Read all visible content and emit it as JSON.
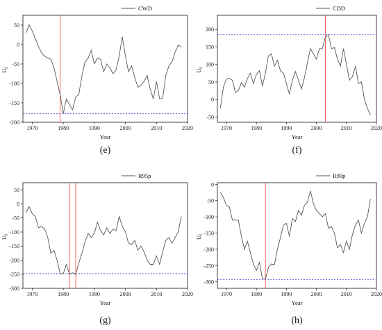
{
  "colors": {
    "line": "#555555",
    "vline": "#ff3b3b",
    "hline": "#3c4fd8",
    "axis": "#111111"
  },
  "chart_data": [
    {
      "type": "line",
      "panel_label": "(e)",
      "ylabel": "U",
      "ylabel_sub": "f",
      "xlabel": "Year",
      "xlim": [
        1967,
        2020
      ],
      "ylim": [
        -200,
        75
      ],
      "xticks": [
        1970,
        1980,
        1990,
        2000,
        2010,
        2020
      ],
      "yticks": [
        50,
        0,
        -50,
        -100,
        -150,
        -200
      ],
      "series": [
        {
          "name": "CWD",
          "x": [
            1968,
            1969,
            1970,
            1971,
            1972,
            1973,
            1974,
            1975,
            1976,
            1977,
            1978,
            1979,
            1980,
            1981,
            1982,
            1983,
            1984,
            1985,
            1986,
            1987,
            1988,
            1989,
            1990,
            1991,
            1992,
            1993,
            1994,
            1995,
            1996,
            1997,
            1998,
            1999,
            2000,
            2001,
            2002,
            2003,
            2004,
            2005,
            2006,
            2007,
            2008,
            2009,
            2010,
            2011,
            2012,
            2013,
            2014,
            2015,
            2016,
            2017,
            2018
          ],
          "y": [
            30,
            50,
            35,
            15,
            -5,
            -22,
            -30,
            -35,
            -38,
            -60,
            -95,
            -130,
            -178,
            -140,
            -155,
            -168,
            -135,
            -128,
            -80,
            -45,
            -35,
            -15,
            -50,
            -35,
            -38,
            -70,
            -50,
            -60,
            -75,
            -65,
            -30,
            20,
            -30,
            -70,
            -55,
            -85,
            -110,
            -105,
            -95,
            -80,
            -115,
            -140,
            -95,
            -140,
            -138,
            -80,
            -55,
            -45,
            -20,
            -2,
            -5
          ]
        }
      ],
      "vlines": [
        1979
      ],
      "hlines": [
        -178
      ]
    },
    {
      "type": "line",
      "panel_label": "(f)",
      "ylabel": "U",
      "ylabel_sub": "f",
      "xlabel": "Year",
      "xlim": [
        1967,
        2020
      ],
      "ylim": [
        -65,
        240
      ],
      "xticks": [
        1970,
        1980,
        1990,
        2000,
        2010,
        2020
      ],
      "yticks": [
        -50,
        0,
        50,
        100,
        150,
        200
      ],
      "series": [
        {
          "name": "CDD",
          "x": [
            1968,
            1969,
            1970,
            1971,
            1972,
            1973,
            1974,
            1975,
            1976,
            1977,
            1978,
            1979,
            1980,
            1981,
            1982,
            1983,
            1984,
            1985,
            1986,
            1987,
            1988,
            1989,
            1990,
            1991,
            1992,
            1993,
            1994,
            1995,
            1996,
            1997,
            1998,
            1999,
            2000,
            2001,
            2002,
            2003,
            2004,
            2005,
            2006,
            2007,
            2008,
            2009,
            2010,
            2011,
            2012,
            2013,
            2014,
            2015,
            2016,
            2017,
            2018
          ],
          "y": [
            -25,
            35,
            58,
            60,
            55,
            20,
            25,
            48,
            35,
            60,
            75,
            45,
            72,
            82,
            38,
            75,
            125,
            130,
            95,
            112,
            82,
            75,
            45,
            15,
            55,
            80,
            55,
            30,
            62,
            105,
            145,
            130,
            115,
            145,
            145,
            178,
            185,
            145,
            148,
            115,
            95,
            145,
            100,
            55,
            65,
            95,
            45,
            50,
            0,
            -25,
            -45
          ]
        }
      ],
      "vlines": [
        2003
      ],
      "hlines": [
        185
      ]
    },
    {
      "type": "line",
      "panel_label": "(g)",
      "ylabel": "U",
      "ylabel_sub": "f",
      "xlabel": "Year",
      "xlim": [
        1967,
        2020
      ],
      "ylim": [
        -300,
        75
      ],
      "xticks": [
        1970,
        1980,
        1990,
        2000,
        2010,
        2020
      ],
      "yticks": [
        50,
        0,
        -50,
        -100,
        -150,
        -200,
        -250,
        -300
      ],
      "series": [
        {
          "name": "R95p",
          "x": [
            1968,
            1969,
            1970,
            1971,
            1972,
            1973,
            1974,
            1975,
            1976,
            1977,
            1978,
            1979,
            1980,
            1981,
            1982,
            1983,
            1984,
            1985,
            1986,
            1987,
            1988,
            1989,
            1990,
            1991,
            1992,
            1993,
            1994,
            1995,
            1996,
            1997,
            1998,
            1999,
            2000,
            2001,
            2002,
            2003,
            2004,
            2005,
            2006,
            2007,
            2008,
            2009,
            2010,
            2011,
            2012,
            2013,
            2014,
            2015,
            2016,
            2017,
            2018
          ],
          "y": [
            -30,
            -10,
            -35,
            -45,
            -85,
            -80,
            -90,
            -120,
            -175,
            -165,
            -200,
            -248,
            -248,
            -215,
            -250,
            -245,
            -250,
            -210,
            -175,
            -135,
            -105,
            -120,
            -105,
            -65,
            -95,
            -110,
            -85,
            -105,
            -90,
            -95,
            -45,
            -80,
            -100,
            -140,
            -145,
            -130,
            -165,
            -150,
            -170,
            -200,
            -215,
            -215,
            -185,
            -215,
            -170,
            -130,
            -120,
            -140,
            -120,
            -100,
            -45
          ]
        }
      ],
      "vlines": [
        1982,
        1984
      ],
      "hlines": [
        -248
      ]
    },
    {
      "type": "line",
      "panel_label": "(h)",
      "ylabel": "U",
      "ylabel_sub": "f",
      "xlabel": "Year",
      "xlim": [
        1967,
        2020
      ],
      "ylim": [
        -320,
        5
      ],
      "xticks": [
        1970,
        1980,
        1990,
        2000,
        2010,
        2020
      ],
      "yticks": [
        0,
        -50,
        -100,
        -150,
        -200,
        -250,
        -300
      ],
      "series": [
        {
          "name": "R99p",
          "x": [
            1968,
            1969,
            1970,
            1971,
            1972,
            1973,
            1974,
            1975,
            1976,
            1977,
            1978,
            1979,
            1980,
            1981,
            1982,
            1983,
            1984,
            1985,
            1986,
            1987,
            1988,
            1989,
            1990,
            1991,
            1992,
            1993,
            1994,
            1995,
            1996,
            1997,
            1998,
            1999,
            2000,
            2001,
            2002,
            2003,
            2004,
            2005,
            2006,
            2007,
            2008,
            2009,
            2010,
            2011,
            2012,
            2013,
            2014,
            2015,
            2016,
            2017,
            2018
          ],
          "y": [
            -25,
            -40,
            -65,
            -70,
            -110,
            -110,
            -110,
            -160,
            -200,
            -175,
            -210,
            -245,
            -265,
            -240,
            -290,
            -292,
            -255,
            -245,
            -248,
            -200,
            -165,
            -125,
            -120,
            -160,
            -105,
            -115,
            -80,
            -95,
            -65,
            -55,
            -20,
            -60,
            -80,
            -90,
            -100,
            -90,
            -135,
            -130,
            -150,
            -195,
            -185,
            -210,
            -175,
            -200,
            -155,
            -125,
            -110,
            -150,
            -120,
            -100,
            -45
          ]
        }
      ],
      "vlines": [
        1983
      ],
      "hlines": [
        -293
      ]
    }
  ]
}
